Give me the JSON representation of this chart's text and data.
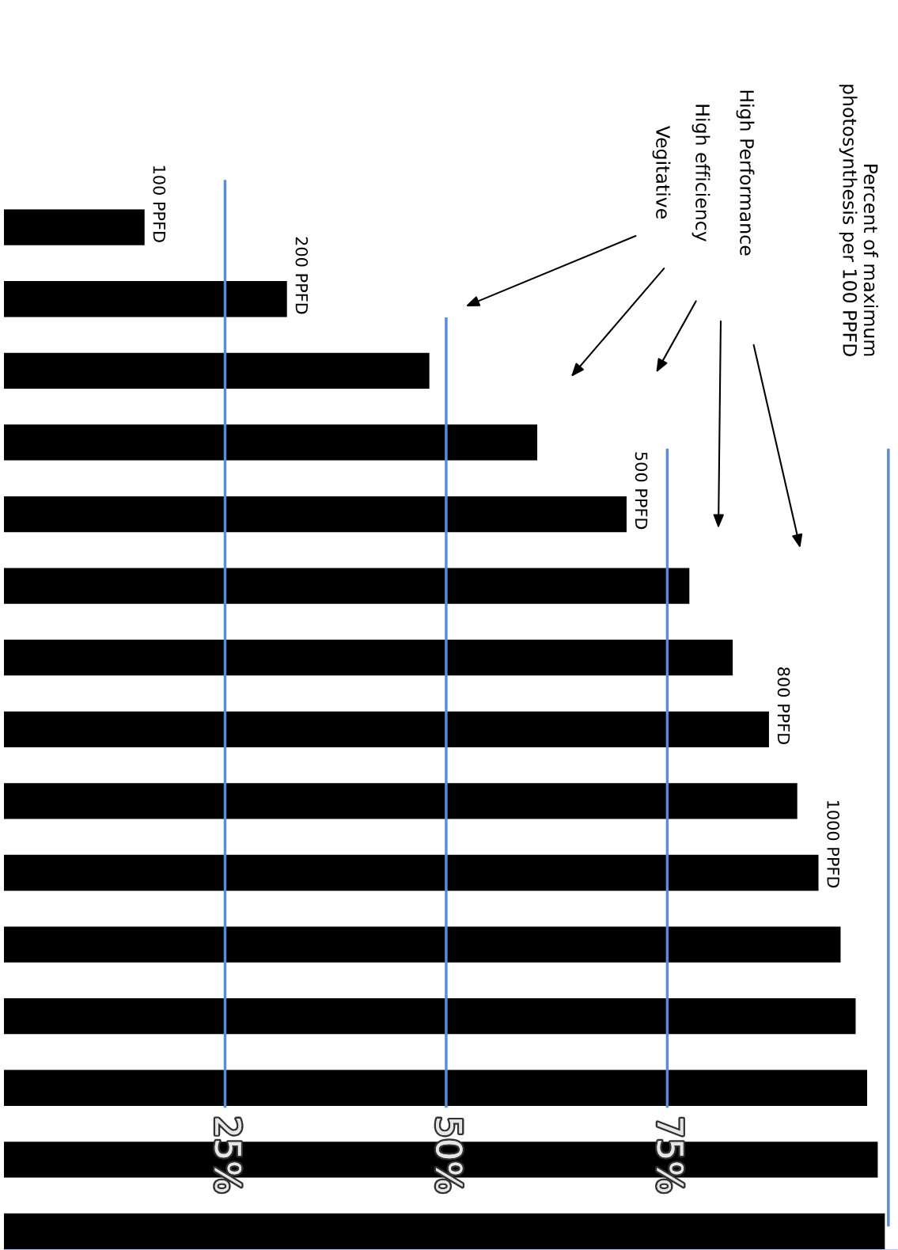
{
  "chart_data": {
    "type": "bar",
    "orientation": "horizontal",
    "title": "Percent of maximum\nphotosynthesis per 100 PPFD",
    "annotations": [
      "High Performance",
      "High efficiency",
      "Vegitative"
    ],
    "categories": [
      "100 PPFD",
      "200 PPFD",
      null,
      null,
      "500 PPFD",
      null,
      null,
      "800 PPFD",
      null,
      "1000 PPFD",
      null,
      null,
      null,
      null,
      null
    ],
    "values": [
      15.9,
      32.0,
      48.1,
      60.3,
      70.4,
      77.5,
      82.4,
      86.5,
      89.7,
      92.1,
      94.6,
      96.3,
      97.6,
      98.8,
      99.6
    ],
    "color": "#000000",
    "xlim": [
      0,
      101
    ],
    "xticks": [
      {
        "value": 25,
        "label": "25%"
      },
      {
        "value": 50,
        "label": "50%"
      },
      {
        "value": 75,
        "label": "75%"
      }
    ],
    "ref_lines": [
      {
        "axis": "x",
        "value": 25,
        "label": null,
        "color": "#5b8bd9"
      },
      {
        "axis": "x",
        "value": 50,
        "label": null,
        "color": "#5b8bd9"
      },
      {
        "axis": "x",
        "value": 75,
        "label": null,
        "color": "#5b8bd9"
      },
      {
        "axis": "x",
        "value": 100,
        "label": null,
        "color": "#5b8bd9"
      }
    ]
  }
}
